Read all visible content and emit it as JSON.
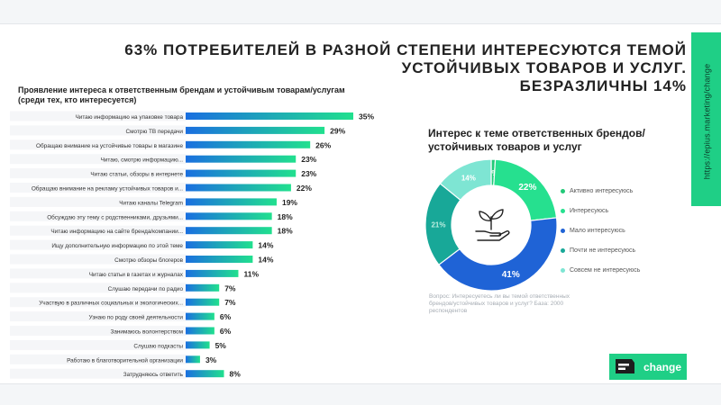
{
  "headline": {
    "line1": "63% ПОТРЕБИТЕЛЕЙ В РАЗНОЙ СТЕПЕНИ ИНТЕРЕСУЮТСЯ ТЕМОЙ",
    "line2": "УСТОЙЧИВЫХ ТОВАРОВ И УСЛУГ.",
    "line3": "БЕЗРАЗЛИЧНЫ 14%"
  },
  "side_url": "https://epius.marketing/change",
  "brand": {
    "name": "change",
    "color": "#1fcf86"
  },
  "note": "Вопрос: Интересуетесь ли вы темой ответственных брендов/устойчивых товаров и услуг? База: 2000 респондентов",
  "colors": {
    "bar_start": "#1a6fe0",
    "bar_end": "#21e08e",
    "label_bg": "#f5f6f8"
  },
  "chart_data": [
    {
      "type": "bar",
      "orientation": "horizontal",
      "title": "Проявление интереса к ответственным брендам и устойчивым товарам/услугам",
      "subtitle": "(среди тех, кто интересуется)",
      "categories": [
        "Читаю информацию на упаковке товара",
        "Смотрю ТВ передачи",
        "Обращаю внимание на устойчивые товары в магазине",
        "Читаю, смотрю информацию...",
        "Читаю статьи, обзоры в интернете",
        "Обращаю внимание на рекламу устойчивых товаров и...",
        "Читаю каналы Telegram",
        "Обсуждаю эту тему с родственниками, друзьями...",
        "Читаю информацию на сайте бренда/компании...",
        "Ищу дополнительную информацию по этой теме",
        "Смотрю обзоры блогеров",
        "Читаю статьи в газетах и журналах",
        "Слушаю передачи по радио",
        "Участвую в различных социальных и экологических...",
        "Узнаю по роду своей деятельности",
        "Занимаюсь волонтерством",
        "Слушаю подкасты",
        "Работаю в благотворительной организации",
        "Затрудняюсь ответить"
      ],
      "values": [
        35,
        29,
        26,
        23,
        23,
        22,
        19,
        18,
        18,
        14,
        14,
        11,
        7,
        7,
        6,
        6,
        5,
        3,
        8
      ],
      "value_labels": [
        "35%",
        "29%",
        "26%",
        "23%",
        "23%",
        "22%",
        "19%",
        "18%",
        "18%",
        "14%",
        "14%",
        "11%",
        "7%",
        "7%",
        "6%",
        "6%",
        "5%",
        "3%",
        "8%"
      ],
      "xlim": [
        0,
        35
      ]
    },
    {
      "type": "pie",
      "style": "donut",
      "title": "Интерес к теме ответственных брендов/ устойчивых товаров и услуг",
      "legend_position": "right",
      "center_icon": "plant-in-hand-icon",
      "slices": [
        {
          "name": "Активно интересуюсь",
          "value": 1,
          "label": "1%",
          "color": "#22c978"
        },
        {
          "name": "Интересуюсь",
          "value": 22,
          "label": "22%",
          "color": "#26e08f"
        },
        {
          "name": "Мало интересуюсь",
          "value": 41,
          "label": "41%",
          "color": "#1f63d6"
        },
        {
          "name": "Почти не интересуюсь",
          "value": 21,
          "label": "21%",
          "color": "#18a898"
        },
        {
          "name": "Совсем не интересуюсь",
          "value": 14,
          "label": "14%",
          "color": "#7ee5d3"
        }
      ]
    }
  ]
}
